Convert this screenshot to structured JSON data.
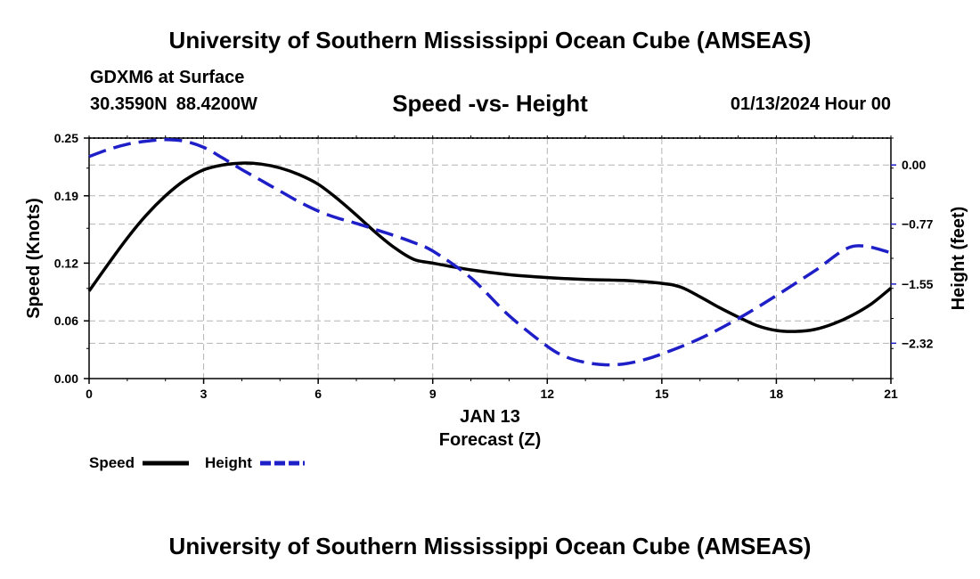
{
  "header": {
    "title": "University of Southern Mississippi Ocean Cube (AMSEAS)",
    "model_level": "GDXM6 at Surface",
    "latitude": "30.3590N",
    "longitude": "88.4200W",
    "subtitle": "Speed -vs- Height",
    "datetime": "01/13/2024 Hour 00"
  },
  "footer": {
    "title": "University of Southern Mississippi Ocean Cube (AMSEAS)"
  },
  "chart_data": {
    "type": "line",
    "title": "Speed -vs- Height",
    "xlabel": "Forecast (Z)",
    "xlabel_date": "JAN 13",
    "ylabel": "Speed (Knots)",
    "y2label": "Height (feet)",
    "xlim": [
      0,
      21
    ],
    "ylim": [
      0,
      0.25
    ],
    "y2lim": [
      -2.78,
      0.35
    ],
    "x_ticks": [
      0,
      3,
      6,
      9,
      12,
      15,
      18,
      21
    ],
    "x_tick_labels": [
      "0",
      "3",
      "6",
      "9",
      "12",
      "15",
      "18",
      "21"
    ],
    "y_ticks": [
      0.0,
      0.06,
      0.12,
      0.19,
      0.25
    ],
    "y_tick_labels": [
      "0.00",
      "0.06",
      "0.12",
      "0.19",
      "0.25"
    ],
    "y2_ticks": [
      0.0,
      -0.77,
      -1.55,
      -2.32
    ],
    "y2_tick_labels": [
      "0.00",
      "−0.77",
      "−1.55",
      "−2.32"
    ],
    "grid": true,
    "legend": "bottom-left",
    "series": [
      {
        "name": "Speed",
        "axis": "left",
        "color": "#000000",
        "style": "solid",
        "x": [
          0,
          0.5,
          1,
          1.5,
          2,
          2.5,
          3,
          3.5,
          4,
          4.5,
          5,
          5.5,
          6,
          6.5,
          7,
          7.5,
          8,
          8.5,
          9,
          10,
          11,
          12,
          13,
          14,
          15,
          15.5,
          16,
          16.5,
          17,
          17.5,
          18,
          18.5,
          19,
          19.5,
          20,
          20.5,
          21
        ],
        "values": [
          0.091,
          0.119,
          0.146,
          0.17,
          0.19,
          0.206,
          0.217,
          0.222,
          0.224,
          0.223,
          0.219,
          0.212,
          0.202,
          0.187,
          0.17,
          0.152,
          0.136,
          0.124,
          0.12,
          0.113,
          0.108,
          0.105,
          0.103,
          0.102,
          0.099,
          0.095,
          0.085,
          0.074,
          0.064,
          0.055,
          0.05,
          0.049,
          0.051,
          0.057,
          0.066,
          0.078,
          0.094
        ]
      },
      {
        "name": "Height",
        "axis": "right",
        "color": "#1f1fc8",
        "style": "dashed",
        "x": [
          0,
          0.5,
          1,
          1.5,
          2,
          2.5,
          3,
          3.5,
          4,
          4.5,
          5,
          5.5,
          6,
          6.5,
          7,
          7.5,
          8,
          8.5,
          9,
          10,
          11,
          12,
          12.5,
          13,
          13.5,
          14,
          14.5,
          15,
          16,
          17,
          18,
          19,
          20,
          21
        ],
        "values": [
          0.11,
          0.2,
          0.27,
          0.31,
          0.33,
          0.31,
          0.23,
          0.09,
          -0.06,
          -0.2,
          -0.34,
          -0.48,
          -0.6,
          -0.69,
          -0.76,
          -0.84,
          -0.92,
          -1.01,
          -1.12,
          -1.47,
          -1.96,
          -2.36,
          -2.5,
          -2.57,
          -2.6,
          -2.59,
          -2.54,
          -2.46,
          -2.26,
          -2.0,
          -1.7,
          -1.38,
          -1.06,
          -1.14
        ]
      }
    ]
  }
}
